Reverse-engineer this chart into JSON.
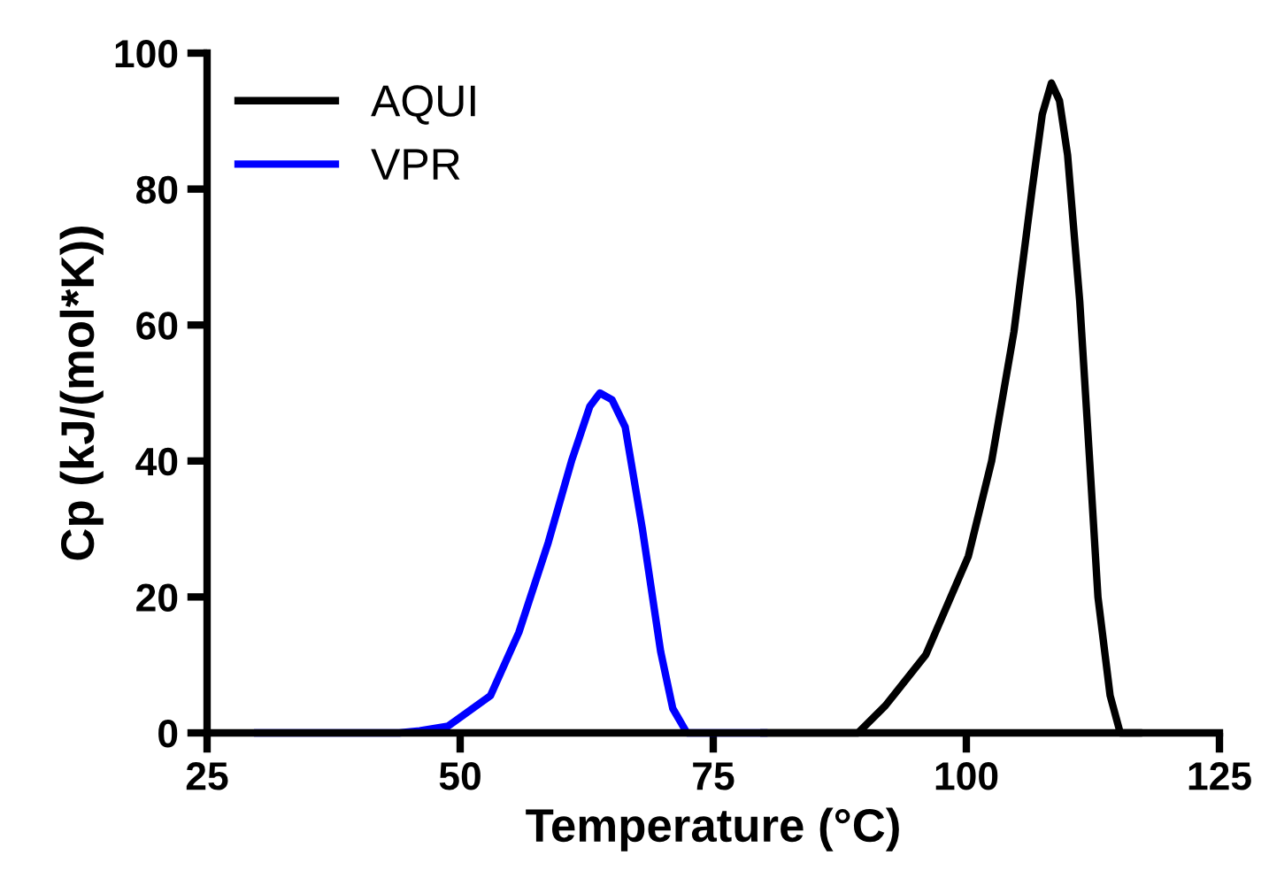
{
  "chart_data": {
    "type": "line",
    "xlabel": "Temperature (°C)",
    "ylabel": "Cp (kJ/(mol*K))",
    "xlim": [
      25,
      125
    ],
    "xticks": [
      25,
      50,
      75,
      100,
      125
    ],
    "ylim": [
      0,
      100
    ],
    "yticks": [
      0,
      20,
      40,
      60,
      80,
      100
    ],
    "grid": false,
    "legend": "top left",
    "marker": "none",
    "line_style": "solid",
    "series": [
      {
        "name": "AQUI",
        "color": "#000000",
        "x": [
          80,
          85,
          89.3,
          92,
          96,
          100.2,
          102.5,
          104.7,
          106.5,
          107.5,
          108.4,
          109.2,
          110,
          111.2,
          112.1,
          113,
          114.2,
          115.2,
          117
        ],
        "values": [
          0,
          0,
          0,
          4,
          11.5,
          26,
          40,
          59,
          80,
          91,
          95.6,
          93,
          85,
          63.5,
          42,
          20,
          5.5,
          0,
          0
        ]
      },
      {
        "name": "VPR",
        "color": "#0000ff",
        "x": [
          30,
          44,
          46,
          48.8,
          53,
          55.8,
          58.7,
          61,
          62.8,
          63.8,
          65,
          66.3,
          68,
          69.8,
          71,
          72.4,
          80
        ],
        "values": [
          0,
          0,
          0.3,
          1,
          5.5,
          14.8,
          28,
          40,
          48,
          50,
          49,
          45,
          30,
          12,
          3.6,
          0,
          0
        ]
      }
    ]
  }
}
